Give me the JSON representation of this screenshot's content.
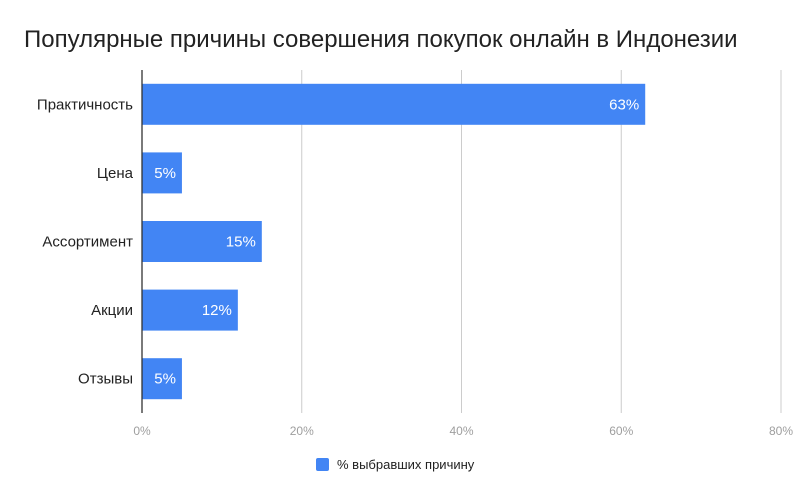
{
  "chart_data": {
    "type": "bar",
    "orientation": "horizontal",
    "title": "Популярные причины совершения покупок онлайн в Индонезии",
    "categories": [
      "Практичность",
      "Цена",
      "Ассортимент",
      "Акции",
      "Отзывы"
    ],
    "series": [
      {
        "name": "% выбравших причину",
        "values": [
          63,
          5,
          15,
          12,
          5
        ],
        "data_labels": [
          "63%",
          "5%",
          "15%",
          "12%",
          "5%"
        ],
        "color": "#4285f4"
      }
    ],
    "x_ticks": [
      "0%",
      "20%",
      "40%",
      "60%",
      "80%"
    ],
    "xlim": [
      0,
      80
    ],
    "grid": true,
    "legend": "bottom"
  }
}
